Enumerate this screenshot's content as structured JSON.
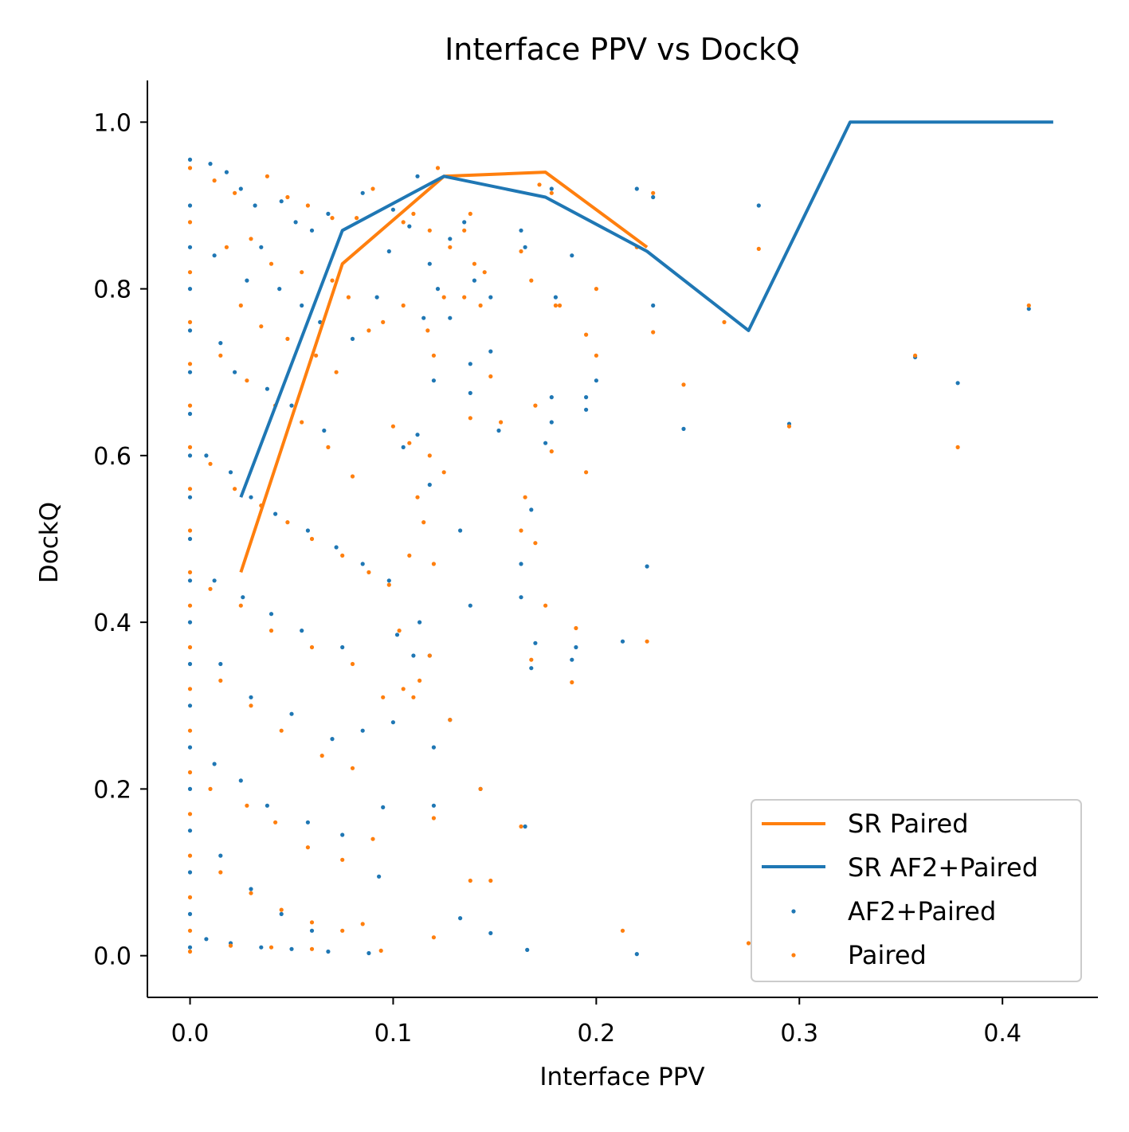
{
  "chart_data": {
    "type": "scatter",
    "title": "Interface PPV vs DockQ",
    "xlabel": "Interface PPV",
    "ylabel": "DockQ",
    "xlim": [
      -0.021,
      0.447
    ],
    "ylim": [
      -0.05,
      1.05
    ],
    "xticks": [
      0.0,
      0.1,
      0.2,
      0.3,
      0.4
    ],
    "xtick_labels": [
      "0.0",
      "0.1",
      "0.2",
      "0.3",
      "0.4"
    ],
    "yticks": [
      0.0,
      0.2,
      0.4,
      0.6,
      0.8,
      1.0
    ],
    "ytick_labels": [
      "0.0",
      "0.2",
      "0.4",
      "0.6",
      "0.8",
      "1.0"
    ],
    "grid": false,
    "legend_position": "lower-right",
    "lines": [
      {
        "name": "SR Paired",
        "color": "#ff7f0e",
        "x": [
          0.025,
          0.075,
          0.125,
          0.175,
          0.225
        ],
        "y": [
          0.46,
          0.83,
          0.935,
          0.94,
          0.85
        ]
      },
      {
        "name": "SR AF2+Paired",
        "color": "#1f77b4",
        "x": [
          0.025,
          0.075,
          0.125,
          0.175,
          0.225,
          0.275,
          0.325,
          0.425
        ],
        "y": [
          0.55,
          0.87,
          0.935,
          0.91,
          0.845,
          0.75,
          1.0,
          1.0
        ]
      }
    ],
    "scatter": [
      {
        "name": "AF2+Paired",
        "color": "#1f77b4",
        "points": [
          [
            0.0,
            0.955
          ],
          [
            0.0,
            0.9
          ],
          [
            0.0,
            0.85
          ],
          [
            0.0,
            0.8
          ],
          [
            0.0,
            0.75
          ],
          [
            0.0,
            0.7
          ],
          [
            0.0,
            0.65
          ],
          [
            0.0,
            0.6
          ],
          [
            0.0,
            0.55
          ],
          [
            0.0,
            0.5
          ],
          [
            0.0,
            0.45
          ],
          [
            0.0,
            0.4
          ],
          [
            0.0,
            0.35
          ],
          [
            0.0,
            0.3
          ],
          [
            0.0,
            0.25
          ],
          [
            0.0,
            0.2
          ],
          [
            0.0,
            0.15
          ],
          [
            0.0,
            0.1
          ],
          [
            0.0,
            0.05
          ],
          [
            0.0,
            0.01
          ],
          [
            0.01,
            0.95
          ],
          [
            0.018,
            0.94
          ],
          [
            0.025,
            0.92
          ],
          [
            0.032,
            0.9
          ],
          [
            0.045,
            0.905
          ],
          [
            0.052,
            0.88
          ],
          [
            0.06,
            0.87
          ],
          [
            0.068,
            0.89
          ],
          [
            0.035,
            0.85
          ],
          [
            0.012,
            0.84
          ],
          [
            0.028,
            0.81
          ],
          [
            0.044,
            0.8
          ],
          [
            0.055,
            0.78
          ],
          [
            0.064,
            0.76
          ],
          [
            0.08,
            0.74
          ],
          [
            0.015,
            0.735
          ],
          [
            0.022,
            0.7
          ],
          [
            0.038,
            0.68
          ],
          [
            0.05,
            0.66
          ],
          [
            0.066,
            0.63
          ],
          [
            0.008,
            0.6
          ],
          [
            0.02,
            0.58
          ],
          [
            0.03,
            0.55
          ],
          [
            0.042,
            0.53
          ],
          [
            0.058,
            0.51
          ],
          [
            0.072,
            0.49
          ],
          [
            0.085,
            0.47
          ],
          [
            0.012,
            0.45
          ],
          [
            0.026,
            0.43
          ],
          [
            0.04,
            0.41
          ],
          [
            0.055,
            0.39
          ],
          [
            0.075,
            0.37
          ],
          [
            0.015,
            0.35
          ],
          [
            0.03,
            0.31
          ],
          [
            0.05,
            0.29
          ],
          [
            0.07,
            0.26
          ],
          [
            0.085,
            0.27
          ],
          [
            0.012,
            0.23
          ],
          [
            0.025,
            0.21
          ],
          [
            0.038,
            0.18
          ],
          [
            0.058,
            0.16
          ],
          [
            0.075,
            0.145
          ],
          [
            0.093,
            0.095
          ],
          [
            0.015,
            0.12
          ],
          [
            0.03,
            0.08
          ],
          [
            0.045,
            0.05
          ],
          [
            0.06,
            0.03
          ],
          [
            0.008,
            0.02
          ],
          [
            0.02,
            0.015
          ],
          [
            0.035,
            0.01
          ],
          [
            0.05,
            0.008
          ],
          [
            0.068,
            0.005
          ],
          [
            0.088,
            0.003
          ],
          [
            0.085,
            0.915
          ],
          [
            0.1,
            0.895
          ],
          [
            0.112,
            0.935
          ],
          [
            0.108,
            0.875
          ],
          [
            0.118,
            0.83
          ],
          [
            0.122,
            0.8
          ],
          [
            0.128,
            0.86
          ],
          [
            0.135,
            0.88
          ],
          [
            0.14,
            0.81
          ],
          [
            0.148,
            0.79
          ],
          [
            0.092,
            0.79
          ],
          [
            0.098,
            0.845
          ],
          [
            0.115,
            0.765
          ],
          [
            0.128,
            0.765
          ],
          [
            0.138,
            0.71
          ],
          [
            0.148,
            0.725
          ],
          [
            0.12,
            0.69
          ],
          [
            0.138,
            0.675
          ],
          [
            0.152,
            0.63
          ],
          [
            0.105,
            0.61
          ],
          [
            0.112,
            0.625
          ],
          [
            0.118,
            0.565
          ],
          [
            0.133,
            0.51
          ],
          [
            0.138,
            0.42
          ],
          [
            0.098,
            0.45
          ],
          [
            0.102,
            0.385
          ],
          [
            0.11,
            0.36
          ],
          [
            0.118,
            0.36
          ],
          [
            0.113,
            0.4
          ],
          [
            0.1,
            0.28
          ],
          [
            0.12,
            0.25
          ],
          [
            0.095,
            0.178
          ],
          [
            0.12,
            0.18
          ],
          [
            0.133,
            0.045
          ],
          [
            0.148,
            0.027
          ],
          [
            0.165,
            0.155
          ],
          [
            0.163,
            0.87
          ],
          [
            0.165,
            0.85
          ],
          [
            0.178,
            0.92
          ],
          [
            0.18,
            0.79
          ],
          [
            0.188,
            0.84
          ],
          [
            0.175,
            0.615
          ],
          [
            0.178,
            0.64
          ],
          [
            0.178,
            0.67
          ],
          [
            0.19,
            0.37
          ],
          [
            0.168,
            0.535
          ],
          [
            0.163,
            0.47
          ],
          [
            0.163,
            0.43
          ],
          [
            0.17,
            0.375
          ],
          [
            0.168,
            0.345
          ],
          [
            0.188,
            0.355
          ],
          [
            0.195,
            0.655
          ],
          [
            0.2,
            0.69
          ],
          [
            0.195,
            0.67
          ],
          [
            0.22,
            0.92
          ],
          [
            0.228,
            0.91
          ],
          [
            0.228,
            0.78
          ],
          [
            0.225,
            0.467
          ],
          [
            0.213,
            0.377
          ],
          [
            0.243,
            0.632
          ],
          [
            0.22,
            0.002
          ],
          [
            0.166,
            0.007
          ],
          [
            0.28,
            0.9
          ],
          [
            0.295,
            0.638
          ],
          [
            0.357,
            0.718
          ],
          [
            0.378,
            0.687
          ],
          [
            0.413,
            0.776
          ],
          [
            0.128,
            0.283
          ],
          [
            0.143,
            0.2
          ]
        ]
      },
      {
        "name": "Paired",
        "color": "#ff7f0e",
        "points": [
          [
            0.0,
            0.945
          ],
          [
            0.0,
            0.88
          ],
          [
            0.0,
            0.82
          ],
          [
            0.0,
            0.76
          ],
          [
            0.0,
            0.71
          ],
          [
            0.0,
            0.66
          ],
          [
            0.0,
            0.61
          ],
          [
            0.0,
            0.56
          ],
          [
            0.0,
            0.51
          ],
          [
            0.0,
            0.46
          ],
          [
            0.0,
            0.42
          ],
          [
            0.0,
            0.37
          ],
          [
            0.0,
            0.32
          ],
          [
            0.0,
            0.27
          ],
          [
            0.0,
            0.22
          ],
          [
            0.0,
            0.17
          ],
          [
            0.0,
            0.12
          ],
          [
            0.0,
            0.07
          ],
          [
            0.0,
            0.03
          ],
          [
            0.0,
            0.005
          ],
          [
            0.012,
            0.93
          ],
          [
            0.022,
            0.915
          ],
          [
            0.038,
            0.935
          ],
          [
            0.048,
            0.91
          ],
          [
            0.058,
            0.9
          ],
          [
            0.07,
            0.885
          ],
          [
            0.082,
            0.885
          ],
          [
            0.03,
            0.86
          ],
          [
            0.018,
            0.85
          ],
          [
            0.04,
            0.83
          ],
          [
            0.055,
            0.82
          ],
          [
            0.07,
            0.81
          ],
          [
            0.078,
            0.79
          ],
          [
            0.025,
            0.78
          ],
          [
            0.035,
            0.755
          ],
          [
            0.048,
            0.74
          ],
          [
            0.062,
            0.72
          ],
          [
            0.072,
            0.7
          ],
          [
            0.088,
            0.75
          ],
          [
            0.015,
            0.72
          ],
          [
            0.028,
            0.69
          ],
          [
            0.042,
            0.66
          ],
          [
            0.055,
            0.64
          ],
          [
            0.068,
            0.61
          ],
          [
            0.08,
            0.575
          ],
          [
            0.01,
            0.59
          ],
          [
            0.022,
            0.56
          ],
          [
            0.035,
            0.54
          ],
          [
            0.048,
            0.52
          ],
          [
            0.06,
            0.5
          ],
          [
            0.075,
            0.48
          ],
          [
            0.088,
            0.46
          ],
          [
            0.01,
            0.44
          ],
          [
            0.025,
            0.42
          ],
          [
            0.04,
            0.39
          ],
          [
            0.06,
            0.37
          ],
          [
            0.08,
            0.35
          ],
          [
            0.015,
            0.33
          ],
          [
            0.03,
            0.3
          ],
          [
            0.045,
            0.27
          ],
          [
            0.065,
            0.24
          ],
          [
            0.08,
            0.225
          ],
          [
            0.01,
            0.2
          ],
          [
            0.028,
            0.18
          ],
          [
            0.042,
            0.16
          ],
          [
            0.058,
            0.13
          ],
          [
            0.075,
            0.115
          ],
          [
            0.09,
            0.14
          ],
          [
            0.015,
            0.1
          ],
          [
            0.03,
            0.075
          ],
          [
            0.045,
            0.055
          ],
          [
            0.06,
            0.04
          ],
          [
            0.075,
            0.03
          ],
          [
            0.085,
            0.038
          ],
          [
            0.02,
            0.012
          ],
          [
            0.04,
            0.01
          ],
          [
            0.06,
            0.008
          ],
          [
            0.094,
            0.006
          ],
          [
            0.09,
            0.92
          ],
          [
            0.105,
            0.88
          ],
          [
            0.11,
            0.89
          ],
          [
            0.122,
            0.945
          ],
          [
            0.118,
            0.87
          ],
          [
            0.128,
            0.85
          ],
          [
            0.135,
            0.87
          ],
          [
            0.138,
            0.89
          ],
          [
            0.14,
            0.83
          ],
          [
            0.145,
            0.82
          ],
          [
            0.095,
            0.76
          ],
          [
            0.105,
            0.78
          ],
          [
            0.117,
            0.75
          ],
          [
            0.125,
            0.79
          ],
          [
            0.12,
            0.72
          ],
          [
            0.135,
            0.79
          ],
          [
            0.143,
            0.78
          ],
          [
            0.148,
            0.695
          ],
          [
            0.138,
            0.645
          ],
          [
            0.153,
            0.64
          ],
          [
            0.1,
            0.635
          ],
          [
            0.108,
            0.615
          ],
          [
            0.118,
            0.6
          ],
          [
            0.125,
            0.58
          ],
          [
            0.112,
            0.55
          ],
          [
            0.115,
            0.52
          ],
          [
            0.108,
            0.48
          ],
          [
            0.12,
            0.47
          ],
          [
            0.098,
            0.445
          ],
          [
            0.103,
            0.39
          ],
          [
            0.113,
            0.33
          ],
          [
            0.11,
            0.31
          ],
          [
            0.105,
            0.32
          ],
          [
            0.095,
            0.31
          ],
          [
            0.118,
            0.36
          ],
          [
            0.12,
            0.165
          ],
          [
            0.138,
            0.09
          ],
          [
            0.148,
            0.09
          ],
          [
            0.12,
            0.022
          ],
          [
            0.128,
            0.283
          ],
          [
            0.143,
            0.2
          ],
          [
            0.163,
            0.155
          ],
          [
            0.163,
            0.845
          ],
          [
            0.168,
            0.81
          ],
          [
            0.172,
            0.925
          ],
          [
            0.178,
            0.915
          ],
          [
            0.18,
            0.78
          ],
          [
            0.17,
            0.66
          ],
          [
            0.178,
            0.605
          ],
          [
            0.182,
            0.78
          ],
          [
            0.165,
            0.55
          ],
          [
            0.163,
            0.51
          ],
          [
            0.17,
            0.495
          ],
          [
            0.175,
            0.42
          ],
          [
            0.168,
            0.355
          ],
          [
            0.188,
            0.328
          ],
          [
            0.19,
            0.393
          ],
          [
            0.195,
            0.745
          ],
          [
            0.2,
            0.72
          ],
          [
            0.2,
            0.8
          ],
          [
            0.195,
            0.58
          ],
          [
            0.22,
            0.85
          ],
          [
            0.228,
            0.915
          ],
          [
            0.228,
            0.748
          ],
          [
            0.225,
            0.377
          ],
          [
            0.243,
            0.685
          ],
          [
            0.213,
            0.03
          ],
          [
            0.263,
            0.76
          ],
          [
            0.275,
            0.015
          ],
          [
            0.28,
            0.848
          ],
          [
            0.295,
            0.635
          ],
          [
            0.357,
            0.72
          ],
          [
            0.378,
            0.61
          ],
          [
            0.413,
            0.78
          ]
        ]
      }
    ]
  },
  "legend": {
    "items": [
      {
        "label": "SR Paired",
        "kind": "line",
        "color": "#ff7f0e"
      },
      {
        "label": "SR AF2+Paired",
        "kind": "line",
        "color": "#1f77b4"
      },
      {
        "label": "AF2+Paired",
        "kind": "dot",
        "color": "#1f77b4"
      },
      {
        "label": "Paired",
        "kind": "dot",
        "color": "#ff7f0e"
      }
    ]
  }
}
